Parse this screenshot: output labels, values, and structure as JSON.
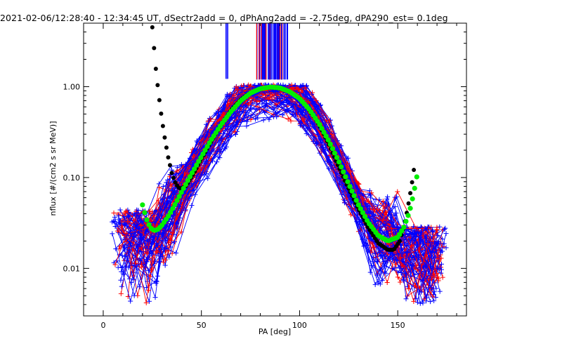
{
  "title": "2021-02-06/12:28:40 - 12:34:45 UT, dSectr2add = 0, dPhAng2add = -2.75deg, dPA290_est=   0.1deg",
  "chart_data": {
    "type": "line",
    "xlabel": "PA [deg]",
    "ylabel": "nflux [#/(cm2 s sr MeV)]",
    "xlim": [
      -10,
      185
    ],
    "ylim": [
      0.003,
      5.0
    ],
    "yscale": "log",
    "xticks": [
      0,
      50,
      100,
      150
    ],
    "xtick_labels": [
      "0",
      "50",
      "100",
      "150"
    ],
    "yticks": [
      0.01,
      0.1,
      1.0
    ],
    "ytick_labels": [
      "0.01",
      "0.10",
      "1.00"
    ],
    "grid": false,
    "colors": {
      "red": "#ff0000",
      "blue": "#0000ff",
      "black": "#000000",
      "green": "#00ee00"
    },
    "series": [
      {
        "style": "black dashed fit",
        "x": [
          25,
          27,
          29,
          31,
          33,
          35,
          37,
          39,
          42,
          46,
          50,
          55,
          60,
          65,
          70,
          75,
          80,
          85,
          90,
          95,
          100,
          105,
          110,
          115,
          120,
          125,
          130,
          135,
          140,
          145,
          148,
          151,
          153,
          155,
          157,
          159
        ],
        "y": [
          4.5,
          1.4,
          0.6,
          0.3,
          0.17,
          0.11,
          0.085,
          0.075,
          0.08,
          0.11,
          0.16,
          0.25,
          0.38,
          0.55,
          0.72,
          0.86,
          0.95,
          0.98,
          0.96,
          0.88,
          0.74,
          0.55,
          0.38,
          0.23,
          0.13,
          0.075,
          0.045,
          0.028,
          0.019,
          0.016,
          0.016,
          0.02,
          0.028,
          0.045,
          0.08,
          0.16
        ]
      },
      {
        "style": "green fit",
        "x": [
          20,
          22,
          24,
          26,
          28,
          30,
          33,
          36,
          40,
          45,
          50,
          55,
          60,
          65,
          70,
          75,
          80,
          85,
          90,
          95,
          100,
          105,
          110,
          115,
          120,
          125,
          130,
          135,
          140,
          145,
          150,
          153,
          156,
          158,
          160
        ],
        "y": [
          0.05,
          0.035,
          0.028,
          0.026,
          0.027,
          0.03,
          0.037,
          0.048,
          0.07,
          0.11,
          0.17,
          0.26,
          0.38,
          0.53,
          0.7,
          0.85,
          0.95,
          0.99,
          0.97,
          0.88,
          0.74,
          0.56,
          0.39,
          0.25,
          0.15,
          0.085,
          0.05,
          0.032,
          0.023,
          0.02,
          0.022,
          0.028,
          0.042,
          0.065,
          0.11
        ]
      }
    ]
  }
}
